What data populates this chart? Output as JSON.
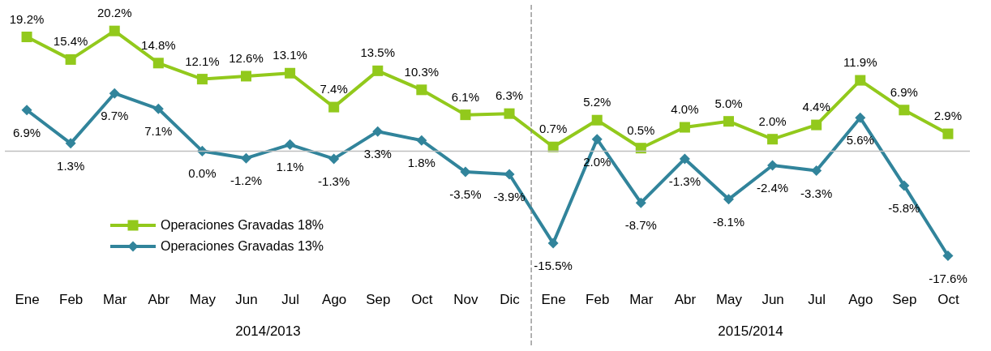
{
  "chart_data": {
    "type": "line",
    "categories": [
      "Ene",
      "Feb",
      "Mar",
      "Abr",
      "May",
      "Jun",
      "Jul",
      "Ago",
      "Sep",
      "Oct",
      "Nov",
      "Dic",
      "Ene",
      "Feb",
      "Mar",
      "Abr",
      "May",
      "Jun",
      "Jul",
      "Ago",
      "Sep",
      "Oct"
    ],
    "series": [
      {
        "name": "Operaciones Gravadas 18%",
        "color": "#92c91c",
        "marker": "square",
        "values": [
          19.2,
          15.4,
          20.2,
          14.8,
          12.1,
          12.6,
          13.1,
          7.4,
          13.5,
          10.3,
          6.1,
          6.3,
          0.7,
          5.2,
          0.5,
          4.0,
          5.0,
          2.0,
          4.4,
          11.9,
          6.9,
          2.9
        ],
        "value_labels": [
          "19.2%",
          "15.4%",
          "20.2%",
          "14.8%",
          "12.1%",
          "12.6%",
          "13.1%",
          "7.4%",
          "13.5%",
          "10.3%",
          "6.1%",
          "6.3%",
          "0.7%",
          "5.2%",
          "0.5%",
          "4.0%",
          "5.0%",
          "2.0%",
          "4.4%",
          "11.9%",
          "6.9%",
          "2.9%"
        ]
      },
      {
        "name": "Operaciones Gravadas 13%",
        "color": "#31849b",
        "marker": "diamond",
        "values": [
          6.9,
          1.3,
          9.7,
          7.1,
          0.0,
          -1.2,
          1.1,
          -1.3,
          3.3,
          1.8,
          -3.5,
          -3.9,
          -15.5,
          2.0,
          -8.7,
          -1.3,
          -8.1,
          -2.4,
          -3.3,
          5.6,
          -5.8,
          -17.6
        ],
        "value_labels": [
          "6.9%",
          "1.3%",
          "9.7%",
          "7.1%",
          "0.0%",
          "-1.2%",
          "1.1%",
          "-1.3%",
          "3.3%",
          "1.8%",
          "-3.5%",
          "-3.9%",
          "-15.5%",
          "2.0%",
          "-8.7%",
          "-1.3%",
          "-8.1%",
          "-2.4%",
          "-3.3%",
          "5.6%",
          "-5.8%",
          "-17.6%"
        ]
      }
    ],
    "annotations": [
      {
        "text": "2014/2013"
      },
      {
        "text": "2015/2014"
      }
    ],
    "ref_lines": [
      {
        "axis": "y",
        "value": 0,
        "color": "#bfbfbf"
      }
    ],
    "legend": "bottom left",
    "grid": false,
    "line_style": "solid"
  }
}
